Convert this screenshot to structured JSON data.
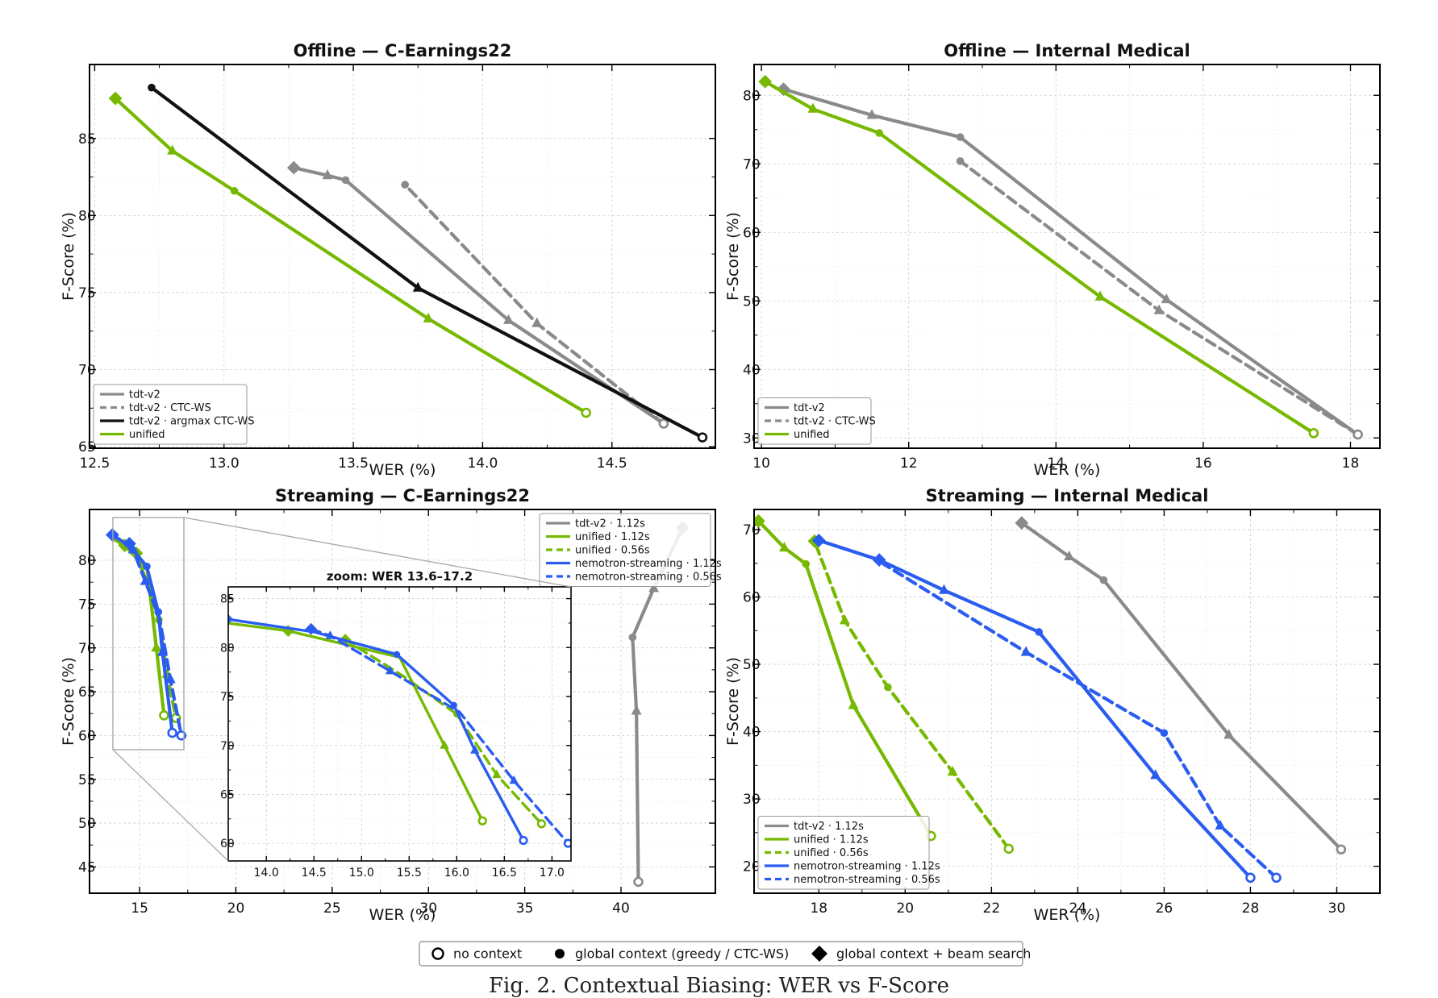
{
  "figure": {
    "caption": "Fig. 2. Contextual Biasing: WER vs F-Score"
  },
  "legend_markers": [
    {
      "label": "no context",
      "marker": "open-circle"
    },
    {
      "label": "global context (greedy / CTC-WS)",
      "marker": "filled-circle"
    },
    {
      "label": "global context + beam search",
      "marker": "diamond"
    }
  ],
  "colors": {
    "gray": "#8a8a8a",
    "black": "#111111",
    "green": "#76b900",
    "blue": "#2a5cf0"
  },
  "chart_data": [
    {
      "id": "p1",
      "type": "line",
      "title": "Offline — C-Earnings22",
      "xlabel": "WER (%)",
      "ylabel": "F-Score (%)",
      "xlim": [
        12.48,
        14.9
      ],
      "ylim": [
        64.9,
        89.8
      ],
      "xticks": [
        {
          "v": 12.5,
          "label": "12.5"
        },
        {
          "v": 13.0,
          "label": "13.0"
        },
        {
          "v": 13.5,
          "label": "13.5"
        },
        {
          "v": 14.0,
          "label": "14.0"
        },
        {
          "v": 14.5,
          "label": "14.5"
        }
      ],
      "yticks": [
        {
          "v": 65,
          "label": "65"
        },
        {
          "v": 70,
          "label": "70"
        },
        {
          "v": 75,
          "label": "75"
        },
        {
          "v": 80,
          "label": "80"
        },
        {
          "v": 85,
          "label": "85"
        }
      ],
      "legend": "bottom-left",
      "legend_entries": [
        {
          "name": "tdt-v2",
          "color": "#8a8a8a",
          "dash": false
        },
        {
          "name": "tdt-v2 · CTC-WS",
          "color": "#8a8a8a",
          "dash": true
        },
        {
          "name": "tdt-v2 · argmax CTC-WS",
          "color": "#111111",
          "dash": false
        },
        {
          "name": "unified",
          "color": "#76b900",
          "dash": false
        }
      ],
      "series": [
        {
          "name": "tdt-v2",
          "color": "#8a8a8a",
          "dash": false,
          "points": [
            {
              "x": 14.7,
              "y": 66.5,
              "m": "open"
            },
            {
              "x": 14.1,
              "y": 73.2,
              "m": "triangle"
            },
            {
              "x": 13.47,
              "y": 82.3,
              "m": "dot"
            },
            {
              "x": 13.4,
              "y": 82.6,
              "m": "triangle"
            },
            {
              "x": 13.27,
              "y": 83.1,
              "m": "diamond"
            }
          ]
        },
        {
          "name": "tdt-v2 · CTC-WS",
          "color": "#8a8a8a",
          "dash": true,
          "points": [
            {
              "x": 14.7,
              "y": 66.5,
              "m": "open"
            },
            {
              "x": 14.21,
              "y": 73.0,
              "m": "triangle"
            },
            {
              "x": 13.7,
              "y": 82.0,
              "m": "dot"
            }
          ]
        },
        {
          "name": "tdt-v2 · argmax CTC-WS",
          "color": "#111111",
          "dash": false,
          "points": [
            {
              "x": 14.85,
              "y": 65.6,
              "m": "open"
            },
            {
              "x": 13.75,
              "y": 75.3,
              "m": "triangle"
            },
            {
              "x": 12.72,
              "y": 88.3,
              "m": "dot"
            }
          ]
        },
        {
          "name": "unified",
          "color": "#76b900",
          "dash": false,
          "points": [
            {
              "x": 14.4,
              "y": 67.2,
              "m": "open"
            },
            {
              "x": 13.79,
              "y": 73.3,
              "m": "triangle"
            },
            {
              "x": 13.04,
              "y": 81.6,
              "m": "dot"
            },
            {
              "x": 12.8,
              "y": 84.2,
              "m": "triangle"
            },
            {
              "x": 12.58,
              "y": 87.6,
              "m": "diamond"
            }
          ]
        }
      ]
    },
    {
      "id": "p2",
      "type": "line",
      "title": "Offline — Internal Medical",
      "xlabel": "WER (%)",
      "ylabel": "F-Score (%)",
      "xlim": [
        9.9,
        18.4
      ],
      "ylim": [
        28.5,
        84.5
      ],
      "xticks": [
        {
          "v": 10,
          "label": "10"
        },
        {
          "v": 12,
          "label": "12"
        },
        {
          "v": 14,
          "label": "14"
        },
        {
          "v": 16,
          "label": "16"
        },
        {
          "v": 18,
          "label": "18"
        }
      ],
      "yticks": [
        {
          "v": 30,
          "label": "30"
        },
        {
          "v": 40,
          "label": "40"
        },
        {
          "v": 50,
          "label": "50"
        },
        {
          "v": 60,
          "label": "60"
        },
        {
          "v": 70,
          "label": "70"
        },
        {
          "v": 80,
          "label": "80"
        }
      ],
      "legend": "bottom-left",
      "legend_entries": [
        {
          "name": "tdt-v2",
          "color": "#8a8a8a",
          "dash": false
        },
        {
          "name": "tdt-v2 · CTC-WS",
          "color": "#8a8a8a",
          "dash": true
        },
        {
          "name": "unified",
          "color": "#76b900",
          "dash": false
        }
      ],
      "series": [
        {
          "name": "tdt-v2",
          "color": "#8a8a8a",
          "dash": false,
          "points": [
            {
              "x": 18.1,
              "y": 30.5,
              "m": "open"
            },
            {
              "x": 15.5,
              "y": 50.2,
              "m": "triangle"
            },
            {
              "x": 12.7,
              "y": 73.9,
              "m": "dot"
            },
            {
              "x": 11.5,
              "y": 77.1,
              "m": "triangle"
            },
            {
              "x": 10.3,
              "y": 80.9,
              "m": "diamond"
            }
          ]
        },
        {
          "name": "tdt-v2 · CTC-WS",
          "color": "#8a8a8a",
          "dash": true,
          "points": [
            {
              "x": 18.1,
              "y": 30.5,
              "m": "open"
            },
            {
              "x": 15.4,
              "y": 48.6,
              "m": "triangle"
            },
            {
              "x": 12.7,
              "y": 70.4,
              "m": "dot"
            }
          ]
        },
        {
          "name": "unified",
          "color": "#76b900",
          "dash": false,
          "points": [
            {
              "x": 17.5,
              "y": 30.7,
              "m": "open"
            },
            {
              "x": 14.6,
              "y": 50.6,
              "m": "triangle"
            },
            {
              "x": 11.6,
              "y": 74.5,
              "m": "dot"
            },
            {
              "x": 10.7,
              "y": 78.0,
              "m": "triangle"
            },
            {
              "x": 10.05,
              "y": 82.0,
              "m": "diamond"
            }
          ]
        }
      ]
    },
    {
      "id": "p3",
      "type": "line",
      "title": "Streaming — C-Earnings22",
      "xlabel": "WER (%)",
      "ylabel": "F-Score (%)",
      "xlim": [
        12.4,
        44.9
      ],
      "ylim": [
        42.0,
        85.8
      ],
      "xticks": [
        {
          "v": 15,
          "label": "15"
        },
        {
          "v": 20,
          "label": "20"
        },
        {
          "v": 25,
          "label": "25"
        },
        {
          "v": 30,
          "label": "30"
        },
        {
          "v": 35,
          "label": "35"
        },
        {
          "v": 40,
          "label": "40"
        }
      ],
      "yticks": [
        {
          "v": 45,
          "label": "45"
        },
        {
          "v": 50,
          "label": "50"
        },
        {
          "v": 55,
          "label": "55"
        },
        {
          "v": 60,
          "label": "60"
        },
        {
          "v": 65,
          "label": "65"
        },
        {
          "v": 70,
          "label": "70"
        },
        {
          "v": 75,
          "label": "75"
        },
        {
          "v": 80,
          "label": "80"
        }
      ],
      "legend": "top-right",
      "legend_entries": [
        {
          "name": "tdt-v2 · 1.12s",
          "color": "#8a8a8a",
          "dash": false
        },
        {
          "name": "unified · 1.12s",
          "color": "#76b900",
          "dash": false
        },
        {
          "name": "unified · 0.56s",
          "color": "#76b900",
          "dash": true
        },
        {
          "name": "nemotron-streaming · 1.12s",
          "color": "#2a5cf0",
          "dash": false
        },
        {
          "name": "nemotron-streaming · 0.56s",
          "color": "#2a5cf0",
          "dash": true
        }
      ],
      "series": [
        {
          "name": "tdt-v2 · 1.12s",
          "color": "#8a8a8a",
          "dash": false,
          "points": [
            {
              "x": 40.9,
              "y": 43.3,
              "m": "open"
            },
            {
              "x": 40.8,
              "y": 62.8,
              "m": "triangle"
            },
            {
              "x": 40.6,
              "y": 71.2,
              "m": "dot"
            },
            {
              "x": 41.7,
              "y": 76.8,
              "m": "triangle"
            },
            {
              "x": 43.2,
              "y": 83.7,
              "m": "diamond"
            }
          ]
        },
        {
          "name": "unified · 1.12s",
          "color": "#76b900",
          "dash": false,
          "points": [
            {
              "x": 13.59,
              "y": 82.5,
              "m": "none"
            },
            {
              "x": 14.23,
              "y": 81.7,
              "m": "diamond"
            },
            {
              "x": 15.4,
              "y": 79.0,
              "m": "none"
            },
            {
              "x": 15.87,
              "y": 70.0,
              "m": "triangle"
            },
            {
              "x": 16.27,
              "y": 62.3,
              "m": "open"
            }
          ]
        },
        {
          "name": "unified · 0.56s",
          "color": "#76b900",
          "dash": true,
          "points": [
            {
              "x": 14.83,
              "y": 80.8,
              "m": "diamond"
            },
            {
              "x": 15.45,
              "y": 77.0,
              "m": "none"
            },
            {
              "x": 16.0,
              "y": 73.2,
              "m": "dot"
            },
            {
              "x": 16.42,
              "y": 67.0,
              "m": "triangle"
            },
            {
              "x": 16.89,
              "y": 62.0,
              "m": "open"
            }
          ]
        },
        {
          "name": "nemotron-streaming · 1.12s",
          "color": "#2a5cf0",
          "dash": false,
          "points": [
            {
              "x": 13.59,
              "y": 82.9,
              "m": "diamond"
            },
            {
              "x": 14.5,
              "y": 81.6,
              "m": "none"
            },
            {
              "x": 15.37,
              "y": 79.3,
              "m": "dot"
            },
            {
              "x": 15.97,
              "y": 74.1,
              "m": "dot"
            },
            {
              "x": 16.19,
              "y": 69.5,
              "m": "triangle"
            },
            {
              "x": 16.7,
              "y": 60.3,
              "m": "open"
            }
          ]
        },
        {
          "name": "nemotron-streaming · 0.56s",
          "color": "#2a5cf0",
          "dash": true,
          "points": [
            {
              "x": 14.47,
              "y": 81.9,
              "m": "diamond"
            },
            {
              "x": 14.67,
              "y": 81.2,
              "m": "triangle"
            },
            {
              "x": 15.3,
              "y": 77.6,
              "m": "triangle"
            },
            {
              "x": 16.03,
              "y": 73.4,
              "m": "none"
            },
            {
              "x": 16.6,
              "y": 66.4,
              "m": "triangle"
            },
            {
              "x": 17.17,
              "y": 60.0,
              "m": "open"
            }
          ]
        }
      ],
      "inset": {
        "title": "zoom: WER 13.6–17.2",
        "xlim": [
          13.6,
          17.2
        ],
        "ylim": [
          58.2,
          86.2
        ],
        "xticks": [
          {
            "v": 14.0,
            "label": "14.0"
          },
          {
            "v": 14.5,
            "label": "14.5"
          },
          {
            "v": 15.0,
            "label": "15.0"
          },
          {
            "v": 15.5,
            "label": "15.5"
          },
          {
            "v": 16.0,
            "label": "16.0"
          },
          {
            "v": 16.5,
            "label": "16.5"
          },
          {
            "v": 17.0,
            "label": "17.0"
          }
        ],
        "yticks": [
          {
            "v": 60,
            "label": "60"
          },
          {
            "v": 65,
            "label": "65"
          },
          {
            "v": 70,
            "label": "70"
          },
          {
            "v": 75,
            "label": "75"
          },
          {
            "v": 80,
            "label": "80"
          },
          {
            "v": 85,
            "label": "85"
          }
        ]
      }
    },
    {
      "id": "p4",
      "type": "line",
      "title": "Streaming — Internal Medical",
      "xlabel": "WER (%)",
      "ylabel": "F-Score (%)",
      "xlim": [
        16.5,
        31.0
      ],
      "ylim": [
        16.0,
        73.0
      ],
      "xticks": [
        {
          "v": 18,
          "label": "18"
        },
        {
          "v": 20,
          "label": "20"
        },
        {
          "v": 22,
          "label": "22"
        },
        {
          "v": 24,
          "label": "24"
        },
        {
          "v": 26,
          "label": "26"
        },
        {
          "v": 28,
          "label": "28"
        },
        {
          "v": 30,
          "label": "30"
        }
      ],
      "yticks": [
        {
          "v": 20,
          "label": "20"
        },
        {
          "v": 30,
          "label": "30"
        },
        {
          "v": 40,
          "label": "40"
        },
        {
          "v": 50,
          "label": "50"
        },
        {
          "v": 60,
          "label": "60"
        },
        {
          "v": 70,
          "label": "70"
        }
      ],
      "legend": "bottom-left",
      "legend_entries": [
        {
          "name": "tdt-v2 · 1.12s",
          "color": "#8a8a8a",
          "dash": false
        },
        {
          "name": "unified · 1.12s",
          "color": "#76b900",
          "dash": false
        },
        {
          "name": "unified · 0.56s",
          "color": "#76b900",
          "dash": true
        },
        {
          "name": "nemotron-streaming · 1.12s",
          "color": "#2a5cf0",
          "dash": false
        },
        {
          "name": "nemotron-streaming · 0.56s",
          "color": "#2a5cf0",
          "dash": true
        }
      ],
      "series": [
        {
          "name": "tdt-v2 · 1.12s",
          "color": "#8a8a8a",
          "dash": false,
          "points": [
            {
              "x": 30.1,
              "y": 22.5,
              "m": "open"
            },
            {
              "x": 27.5,
              "y": 39.5,
              "m": "triangle"
            },
            {
              "x": 24.6,
              "y": 62.5,
              "m": "dot"
            },
            {
              "x": 23.8,
              "y": 66.0,
              "m": "triangle"
            },
            {
              "x": 22.7,
              "y": 71.0,
              "m": "diamond"
            }
          ]
        },
        {
          "name": "unified · 1.12s",
          "color": "#76b900",
          "dash": false,
          "points": [
            {
              "x": 20.6,
              "y": 24.5,
              "m": "open"
            },
            {
              "x": 18.8,
              "y": 43.9,
              "m": "triangle"
            },
            {
              "x": 17.7,
              "y": 64.9,
              "m": "dot"
            },
            {
              "x": 17.2,
              "y": 67.3,
              "m": "triangle"
            },
            {
              "x": 16.6,
              "y": 71.3,
              "m": "diamond"
            }
          ]
        },
        {
          "name": "unified · 0.56s",
          "color": "#76b900",
          "dash": true,
          "points": [
            {
              "x": 22.4,
              "y": 22.6,
              "m": "open"
            },
            {
              "x": 21.1,
              "y": 34.0,
              "m": "triangle"
            },
            {
              "x": 19.6,
              "y": 46.6,
              "m": "dot"
            },
            {
              "x": 18.6,
              "y": 56.5,
              "m": "triangle"
            },
            {
              "x": 17.9,
              "y": 68.3,
              "m": "diamond"
            }
          ]
        },
        {
          "name": "nemotron-streaming · 1.12s",
          "color": "#2a5cf0",
          "dash": false,
          "points": [
            {
              "x": 28.0,
              "y": 18.3,
              "m": "open"
            },
            {
              "x": 25.8,
              "y": 33.5,
              "m": "triangle"
            },
            {
              "x": 23.1,
              "y": 54.8,
              "m": "dot"
            },
            {
              "x": 20.9,
              "y": 61.0,
              "m": "triangle"
            },
            {
              "x": 19.4,
              "y": 65.5,
              "m": "diamond"
            },
            {
              "x": 18.0,
              "y": 68.4,
              "m": "diamond"
            }
          ]
        },
        {
          "name": "nemotron-streaming · 0.56s",
          "color": "#2a5cf0",
          "dash": true,
          "points": [
            {
              "x": 28.6,
              "y": 18.3,
              "m": "open"
            },
            {
              "x": 27.3,
              "y": 26.0,
              "m": "triangle"
            },
            {
              "x": 26.0,
              "y": 39.8,
              "m": "dot"
            },
            {
              "x": 22.8,
              "y": 51.8,
              "m": "triangle"
            },
            {
              "x": 19.5,
              "y": 64.9,
              "m": "none"
            }
          ]
        }
      ]
    }
  ]
}
